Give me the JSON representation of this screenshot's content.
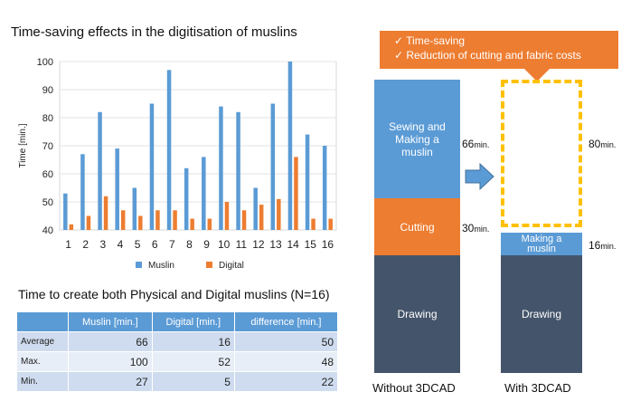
{
  "chart_data": {
    "type": "bar",
    "title": "Time-saving effects in the digitisation of muslins",
    "ylabel": "Time [min.]",
    "xlabel": "",
    "ylim": [
      40,
      100
    ],
    "yticks": [
      40,
      50,
      60,
      70,
      80,
      90,
      100
    ],
    "grid": true,
    "legend_position": "bottom",
    "categories": [
      "1",
      "2",
      "3",
      "4",
      "5",
      "6",
      "7",
      "8",
      "9",
      "10",
      "11",
      "12",
      "13",
      "14",
      "15",
      "16"
    ],
    "series": [
      {
        "name": "Muslin",
        "color": "#5b9bd5",
        "values": [
          53,
          67,
          82,
          69,
          55,
          85,
          97,
          62,
          66,
          84,
          82,
          55,
          85,
          100,
          74,
          70
        ]
      },
      {
        "name": "Digital",
        "color": "#ed7d31",
        "values": [
          42,
          45,
          52,
          47,
          45,
          47,
          47,
          44,
          44,
          50,
          47,
          49,
          51,
          66,
          44,
          44
        ]
      }
    ]
  },
  "table": {
    "title": "Time to create both Physical and Digital muslins (N=16)",
    "headers": [
      "",
      "Muslin [min.]",
      "Digital [min.]",
      "difference [min.]"
    ],
    "rows": [
      {
        "label": "Average",
        "muslin": "66",
        "digital": "16",
        "difference": "50"
      },
      {
        "label": "Max.",
        "muslin": "100",
        "digital": "52",
        "difference": "48"
      },
      {
        "label": "Min.",
        "muslin": "27",
        "digital": "5",
        "difference": "22"
      }
    ]
  },
  "diagram": {
    "callout": [
      "✓  Time-saving",
      "✓  Reduction of cutting and fabric costs"
    ],
    "without": {
      "caption": "Without 3DCAD",
      "sewing": {
        "label": "Sewing and Making a muslin",
        "value": "66",
        "unit": "min.",
        "color": "#5b9bd5"
      },
      "cutting": {
        "label": "Cutting",
        "value": "30",
        "unit": "min.",
        "color": "#ed7d31"
      },
      "drawing": {
        "label": "Drawing",
        "color": "#44546a"
      }
    },
    "with": {
      "caption": "With 3DCAD",
      "saved": {
        "value": "80",
        "unit": "min.",
        "color": "#ffc000"
      },
      "making": {
        "label": "Making a muslin",
        "value": "16",
        "unit": "min.",
        "color": "#5b9bd5"
      },
      "drawing": {
        "label": "Drawing",
        "color": "#44546a"
      }
    },
    "arrow_color": "#5b9bd5"
  }
}
